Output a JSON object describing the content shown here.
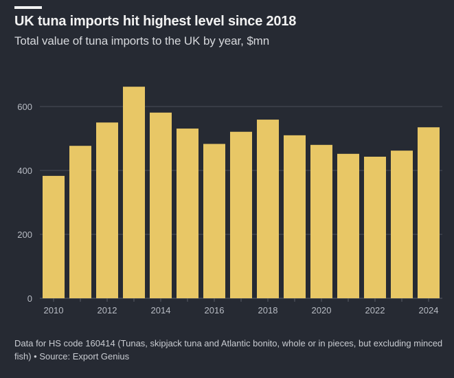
{
  "header": {
    "title": "UK tuna imports hit highest level since 2018",
    "subtitle": "Total value of tuna imports to the UK by year, $mn"
  },
  "footer": {
    "note": "Data for HS code 160414 (Tunas, skipjack tuna and Atlantic bonito, whole or in pieces, but excluding minced fish) • Source: Export Genius"
  },
  "colors": {
    "background": "#262a33",
    "bar": "#e8c766",
    "gridline": "#4a4f5a",
    "text": "#f2f2f2"
  },
  "chart_data": {
    "type": "bar",
    "title": "UK tuna imports hit highest level since 2018",
    "subtitle": "Total value of tuna imports to the UK by year, $mn",
    "xlabel": "",
    "ylabel": "$mn",
    "categories": [
      "2010",
      "2011",
      "2012",
      "2013",
      "2014",
      "2015",
      "2016",
      "2017",
      "2018",
      "2019",
      "2020",
      "2021",
      "2022",
      "2023",
      "2024"
    ],
    "values": [
      383,
      477,
      550,
      662,
      581,
      531,
      483,
      521,
      559,
      510,
      480,
      452,
      443,
      462,
      535
    ],
    "ylim": [
      0,
      700
    ],
    "yticks": [
      0,
      200,
      400,
      600
    ],
    "xtick_labels": [
      "2010",
      "2012",
      "2014",
      "2016",
      "2018",
      "2020",
      "2022",
      "2024"
    ],
    "grid": true,
    "legend": "none"
  }
}
